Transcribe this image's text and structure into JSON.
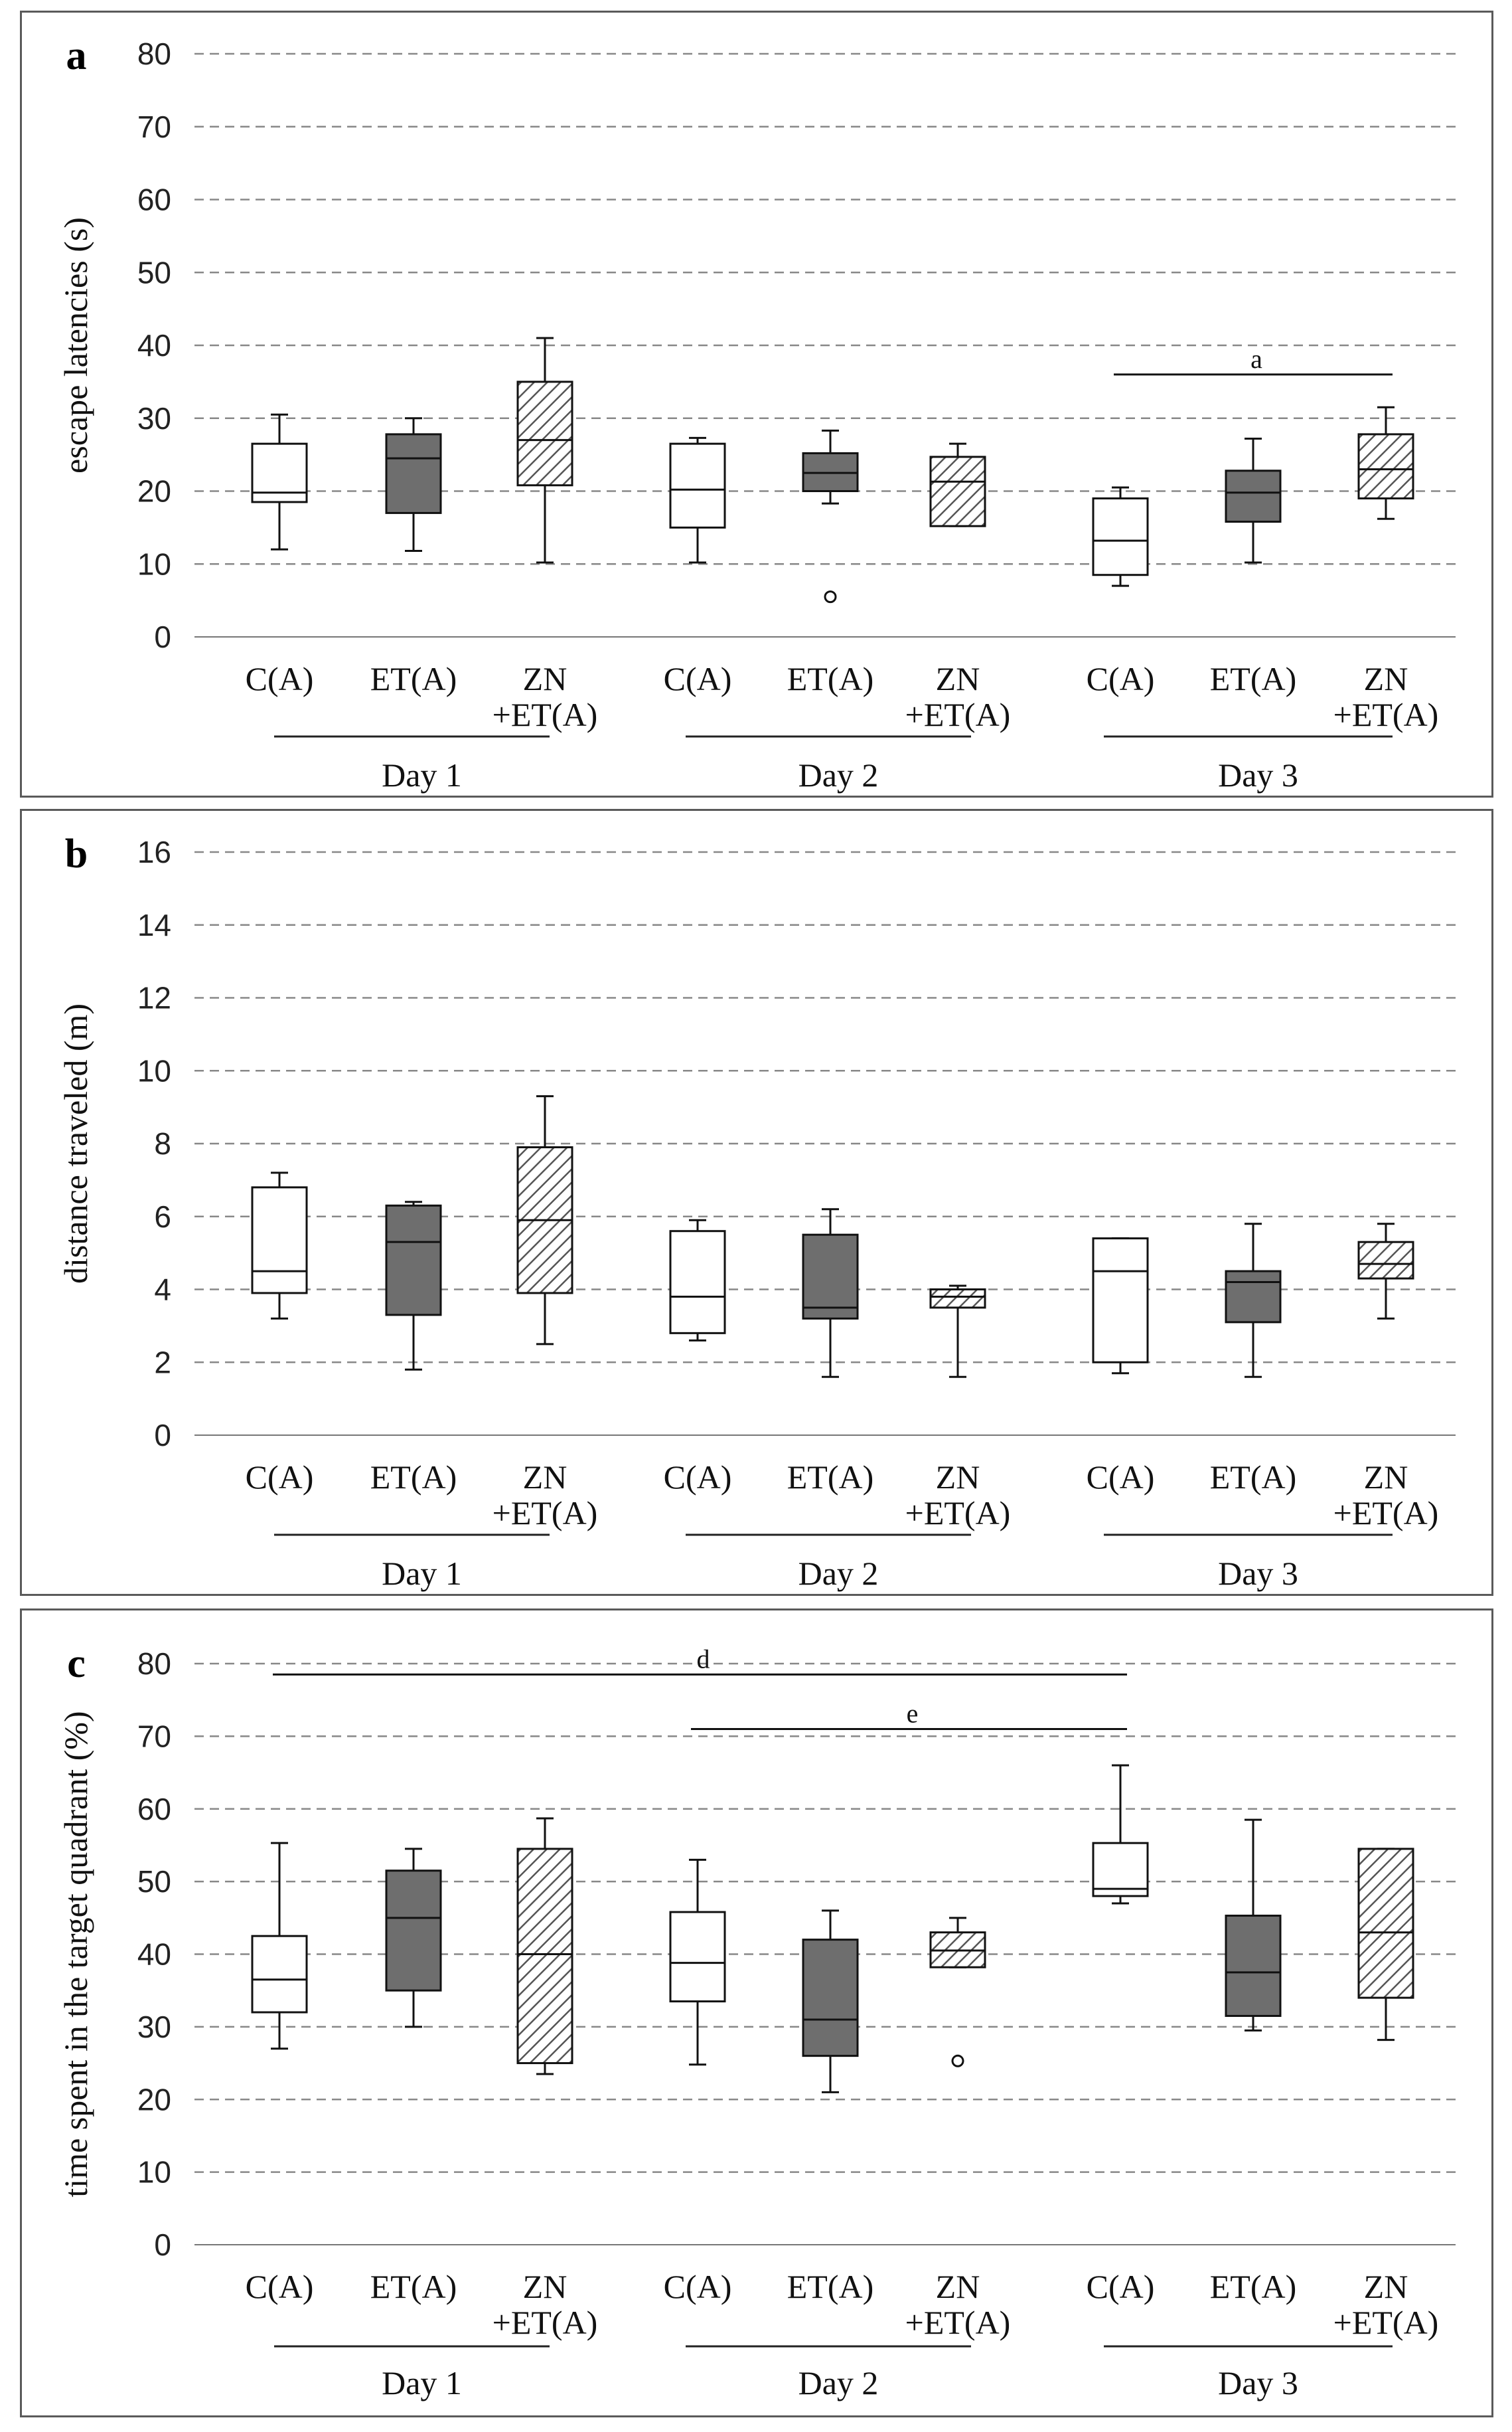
{
  "chart_data": [
    {
      "panel": "a",
      "type": "box",
      "ylabel": "escape latencies (s)",
      "ylim": [
        0,
        80
      ],
      "yticks": [
        "0",
        "10",
        "20",
        "30",
        "40",
        "50",
        "60",
        "70",
        "80"
      ],
      "grid": true,
      "categories": [
        {
          "label": [
            "C(A)"
          ],
          "day": "Day 1",
          "style": "white",
          "min": 12,
          "q1": 18.5,
          "median": 19.8,
          "q3": 26.5,
          "max": 30.5
        },
        {
          "label": [
            "ET(A)"
          ],
          "day": "Day 1",
          "style": "gray",
          "min": 11.8,
          "q1": 17,
          "median": 24.5,
          "q3": 27.8,
          "max": 30
        },
        {
          "label": [
            "ZN",
            "+ET(A)"
          ],
          "day": "Day 1",
          "style": "hatch",
          "min": 10.2,
          "q1": 20.8,
          "median": 27,
          "q3": 35,
          "max": 41
        },
        {
          "label": [
            "C(A)"
          ],
          "day": "Day 2",
          "style": "white",
          "min": 10.2,
          "q1": 15,
          "median": 20.2,
          "q3": 26.5,
          "max": 27.3
        },
        {
          "label": [
            "ET(A)"
          ],
          "day": "Day 2",
          "style": "gray",
          "min": 18.3,
          "q1": 20,
          "median": 22.5,
          "q3": 25.2,
          "max": 28.3,
          "outliers": [
            5.5
          ]
        },
        {
          "label": [
            "ZN",
            "+ET(A)"
          ],
          "day": "Day 2",
          "style": "hatch",
          "min": 15.2,
          "q1": 15.2,
          "median": 21.3,
          "q3": 24.7,
          "max": 26.5
        },
        {
          "label": [
            "C(A)"
          ],
          "day": "Day 3",
          "style": "white",
          "min": 7,
          "q1": 8.5,
          "median": 13.2,
          "q3": 19,
          "max": 20.5
        },
        {
          "label": [
            "ET(A)"
          ],
          "day": "Day 3",
          "style": "gray",
          "min": 10.2,
          "q1": 15.8,
          "median": 19.8,
          "q3": 22.8,
          "max": 27.2
        },
        {
          "label": [
            "ZN",
            "+ET(A)"
          ],
          "day": "Day 3",
          "style": "hatch",
          "min": 16.2,
          "q1": 19,
          "median": 23,
          "q3": 27.8,
          "max": 31.5
        }
      ],
      "days": [
        "Day 1",
        "Day 2",
        "Day 3"
      ],
      "significance": [
        {
          "label": "a",
          "from": 6,
          "to": 8,
          "y": 36
        }
      ]
    },
    {
      "panel": "b",
      "type": "box",
      "ylabel": "distance traveled (m)",
      "ylim": [
        0,
        16
      ],
      "yticks": [
        "0",
        "2",
        "4",
        "6",
        "8",
        "10",
        "12",
        "14",
        "16"
      ],
      "grid": true,
      "categories": [
        {
          "label": [
            "C(A)"
          ],
          "day": "Day 1",
          "style": "white",
          "min": 3.2,
          "q1": 3.9,
          "median": 4.5,
          "q3": 6.8,
          "max": 7.2
        },
        {
          "label": [
            "ET(A)"
          ],
          "day": "Day 1",
          "style": "gray",
          "min": 1.8,
          "q1": 3.3,
          "median": 5.3,
          "q3": 6.3,
          "max": 6.4
        },
        {
          "label": [
            "ZN",
            "+ET(A)"
          ],
          "day": "Day 1",
          "style": "hatch",
          "min": 2.5,
          "q1": 3.9,
          "median": 5.9,
          "q3": 7.9,
          "max": 9.3
        },
        {
          "label": [
            "C(A)"
          ],
          "day": "Day 2",
          "style": "white",
          "min": 2.6,
          "q1": 2.8,
          "median": 3.8,
          "q3": 5.6,
          "max": 5.9
        },
        {
          "label": [
            "ET(A)"
          ],
          "day": "Day 2",
          "style": "gray",
          "min": 1.6,
          "q1": 3.2,
          "median": 3.5,
          "q3": 5.5,
          "max": 6.2
        },
        {
          "label": [
            "ZN",
            "+ET(A)"
          ],
          "day": "Day 2",
          "style": "hatch",
          "min": 1.6,
          "q1": 3.5,
          "median": 3.8,
          "q3": 4.0,
          "max": 4.1
        },
        {
          "label": [
            "C(A)"
          ],
          "day": "Day 3",
          "style": "white",
          "min": 1.7,
          "q1": 2.0,
          "median": 4.5,
          "q3": 5.4,
          "max": 5.4
        },
        {
          "label": [
            "ET(A)"
          ],
          "day": "Day 3",
          "style": "gray",
          "min": 1.6,
          "q1": 3.1,
          "median": 4.2,
          "q3": 4.5,
          "max": 5.8
        },
        {
          "label": [
            "ZN",
            "+ET(A)"
          ],
          "day": "Day 3",
          "style": "hatch",
          "min": 3.2,
          "q1": 4.3,
          "median": 4.7,
          "q3": 5.3,
          "max": 5.8
        }
      ],
      "days": [
        "Day 1",
        "Day 2",
        "Day 3"
      ],
      "significance": []
    },
    {
      "panel": "c",
      "type": "box",
      "ylabel": "time spent in the target quadrant (%)",
      "ylim": [
        0,
        80
      ],
      "yticks": [
        "0",
        "10",
        "20",
        "30",
        "40",
        "50",
        "60",
        "70",
        "80"
      ],
      "grid": true,
      "categories": [
        {
          "label": [
            "C(A)"
          ],
          "day": "Day 1",
          "style": "white",
          "min": 27,
          "q1": 32,
          "median": 36.5,
          "q3": 42.5,
          "max": 55.3
        },
        {
          "label": [
            "ET(A)"
          ],
          "day": "Day 1",
          "style": "gray",
          "min": 30,
          "q1": 35,
          "median": 45,
          "q3": 51.5,
          "max": 54.5
        },
        {
          "label": [
            "ZN",
            "+ET(A)"
          ],
          "day": "Day 1",
          "style": "hatch",
          "min": 23.5,
          "q1": 25,
          "median": 40,
          "q3": 54.5,
          "max": 58.7
        },
        {
          "label": [
            "C(A)"
          ],
          "day": "Day 2",
          "style": "white",
          "min": 24.8,
          "q1": 33.5,
          "median": 38.8,
          "q3": 45.8,
          "max": 53
        },
        {
          "label": [
            "ET(A)"
          ],
          "day": "Day 2",
          "style": "gray",
          "min": 21,
          "q1": 26,
          "median": 31,
          "q3": 42,
          "max": 46
        },
        {
          "label": [
            "ZN",
            "+ET(A)"
          ],
          "day": "Day 2",
          "style": "hatch",
          "min": 38.2,
          "q1": 38.2,
          "median": 40.5,
          "q3": 43,
          "max": 45,
          "outliers": [
            25.3
          ]
        },
        {
          "label": [
            "C(A)"
          ],
          "day": "Day 3",
          "style": "white",
          "min": 47,
          "q1": 48,
          "median": 49,
          "q3": 55.3,
          "max": 66
        },
        {
          "label": [
            "ET(A)"
          ],
          "day": "Day 3",
          "style": "gray",
          "min": 29.5,
          "q1": 31.5,
          "median": 37.5,
          "q3": 45.3,
          "max": 58.5
        },
        {
          "label": [
            "ZN",
            "+ET(A)"
          ],
          "day": "Day 3",
          "style": "hatch",
          "min": 28.2,
          "q1": 34,
          "median": 43,
          "q3": 54.5,
          "max": 54.5
        }
      ],
      "days": [
        "Day 1",
        "Day 2",
        "Day 3"
      ],
      "significance": [
        {
          "label": "d",
          "from": 0,
          "to": 6,
          "y": 78.5
        },
        {
          "label": "e",
          "from": 3,
          "to": 6,
          "y": 71
        }
      ]
    }
  ]
}
